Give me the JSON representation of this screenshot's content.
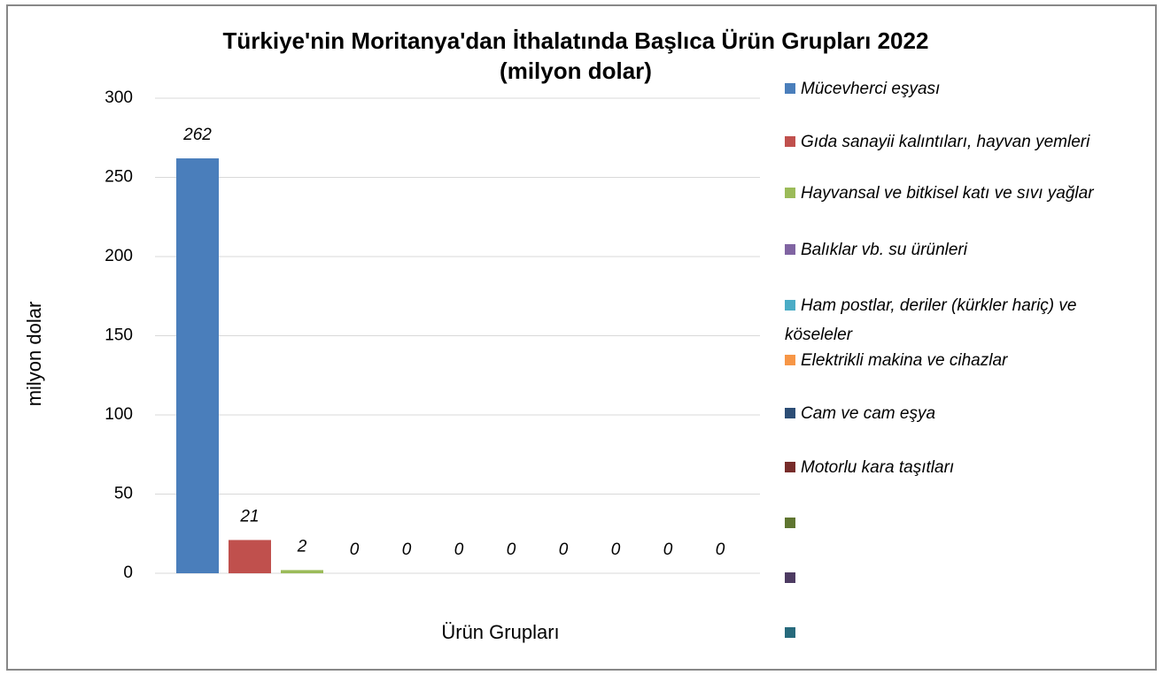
{
  "chart_data": {
    "type": "bar",
    "title": "Türkiye'nin Moritanya'dan İthalatında Başlıca Ürün Grupları 2022",
    "subtitle": "(milyon dolar)",
    "x_label": "Ürün Grupları",
    "y_label": "milyon dolar",
    "categories": [
      null
    ],
    "series": [
      {
        "name": "Mücevherci eşyası",
        "color": "#4a7ebb",
        "values": [
          262
        ]
      },
      {
        "name": "Gıda sanayii kalıntıları, hayvan yemleri",
        "color": "#c0504d",
        "values": [
          21
        ]
      },
      {
        "name": "Hayvansal ve bitkisel katı ve sıvı yağlar",
        "color": "#9bbb59",
        "values": [
          2
        ]
      },
      {
        "name": "Balıklar vb. su ürünleri",
        "color": "#8064a2",
        "values": [
          0
        ]
      },
      {
        "name": "Ham postlar, deriler (kürkler hariç) ve köseleler",
        "color": "#4bacc6",
        "values": [
          0
        ]
      },
      {
        "name": "Elektrikli makina ve cihazlar",
        "color": "#f79646",
        "values": [
          0
        ]
      },
      {
        "name": "Cam ve cam eşya",
        "color": "#2c4d75",
        "values": [
          0
        ]
      },
      {
        "name": "Motorlu kara taşıtları",
        "color": "#772c2a",
        "values": [
          0
        ]
      },
      {
        "name": null,
        "color": "#5f7530",
        "values": [
          0
        ]
      },
      {
        "name": null,
        "color": "#4d3b62",
        "values": [
          0
        ]
      },
      {
        "name": null,
        "color": "#276a7c",
        "values": [
          0
        ]
      }
    ],
    "ylim": [
      0,
      300
    ],
    "yticks": [
      0,
      50,
      100,
      150,
      200,
      250,
      300
    ],
    "grid": true,
    "legend": "right"
  }
}
